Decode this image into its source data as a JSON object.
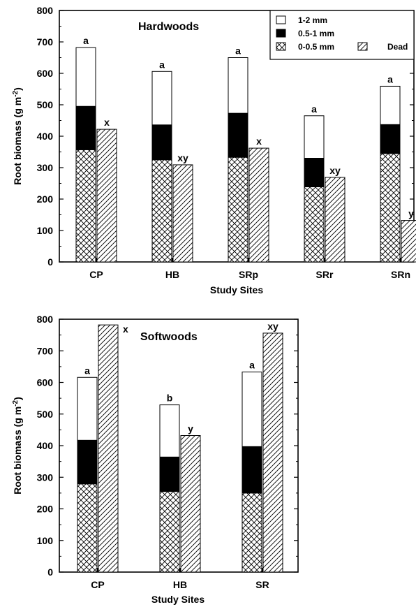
{
  "chart_data": [
    {
      "type": "bar",
      "title": "Hardwoods",
      "xlabel": "Study Sites",
      "ylabel": "Root biomass (g m",
      "ylabel_sup": "-2",
      "ylabel_close": ")",
      "ylim": [
        0,
        800
      ],
      "yticks": [
        "0",
        "100",
        "200",
        "300",
        "400",
        "500",
        "600",
        "700",
        "800"
      ],
      "categories": [
        "CP",
        "HB",
        "SRp",
        "SRr",
        "SRn"
      ],
      "legend": [
        {
          "label": "1-2 mm",
          "pattern": "white"
        },
        {
          "label": "0.5-1 mm",
          "pattern": "black"
        },
        {
          "label": "0-0.5 mm",
          "pattern": "crosshatch"
        },
        {
          "label": "Dead",
          "pattern": "diagonal"
        }
      ],
      "series": [
        {
          "name": "0-0.5 mm",
          "values": [
            357,
            325,
            333,
            239,
            345
          ]
        },
        {
          "name": "0.5-1 mm",
          "values": [
            138,
            111,
            140,
            91,
            92
          ]
        },
        {
          "name": "1-2 mm",
          "values": [
            187,
            170,
            177,
            135,
            122
          ]
        },
        {
          "name": "Dead",
          "values": [
            422,
            309,
            362,
            269,
            132
          ]
        }
      ],
      "live_letters": [
        "a",
        "a",
        "a",
        "a",
        "a"
      ],
      "dead_letters": [
        "x",
        "xy",
        "x",
        "xy",
        "y"
      ]
    },
    {
      "type": "bar",
      "title": "Softwoods",
      "xlabel": "Study Sites",
      "ylabel": "Root biomass (g m",
      "ylabel_sup": "-2",
      "ylabel_close": ")",
      "ylim": [
        0,
        800
      ],
      "yticks": [
        "0",
        "100",
        "200",
        "300",
        "400",
        "500",
        "600",
        "700",
        "800"
      ],
      "categories": [
        "CP",
        "HB",
        "SR"
      ],
      "series": [
        {
          "name": "0-0.5 mm",
          "values": [
            279,
            255,
            250
          ]
        },
        {
          "name": "0.5-1 mm",
          "values": [
            138,
            109,
            147
          ]
        },
        {
          "name": "1-2 mm",
          "values": [
            199,
            165,
            236
          ]
        },
        {
          "name": "Dead",
          "values": [
            782,
            432,
            756
          ]
        }
      ],
      "live_letters": [
        "a",
        "b",
        "a"
      ],
      "dead_letters": [
        "x",
        "y",
        "xy"
      ]
    }
  ]
}
